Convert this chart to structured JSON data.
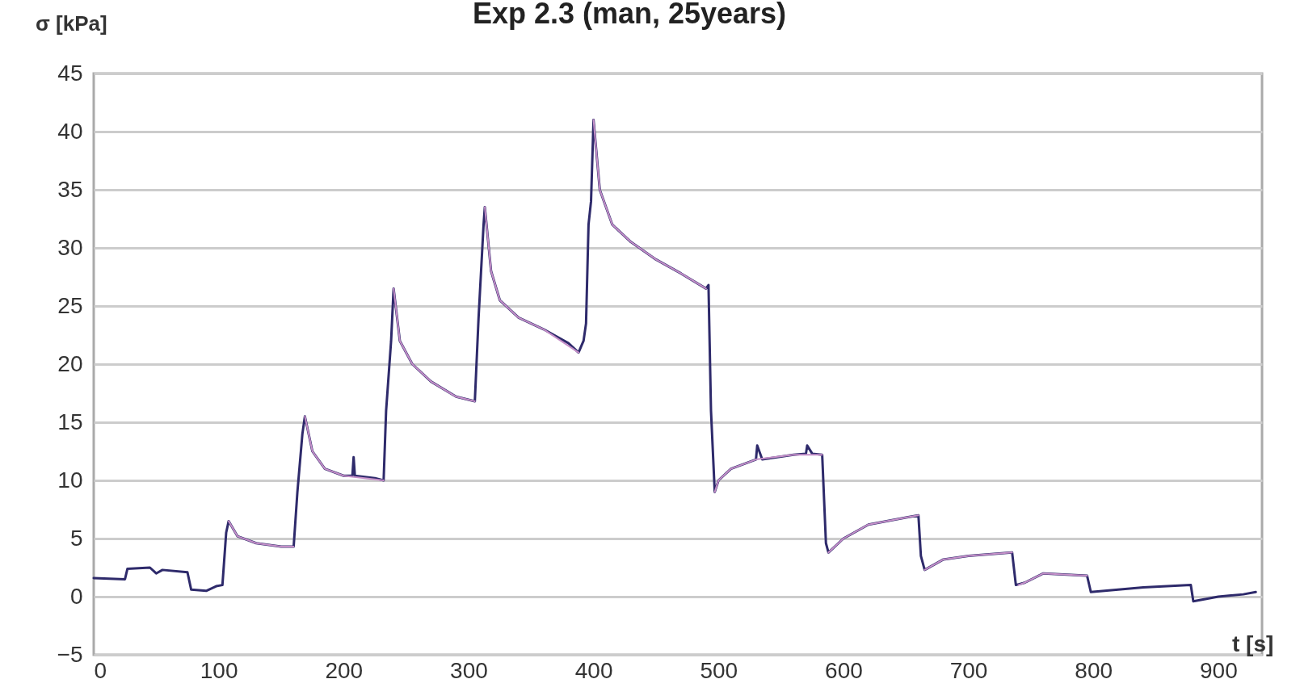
{
  "chart_data": {
    "type": "line",
    "title": "Exp 2.3 (man, 25years)",
    "xlabel": "t [s]",
    "ylabel": "σ [kPa]",
    "xlim": [
      0,
      935
    ],
    "xticks": [
      0,
      100,
      200,
      300,
      400,
      500,
      600,
      700,
      800,
      900
    ],
    "ylim": [
      -5,
      45
    ],
    "yticks": [
      -5,
      0,
      5,
      10,
      15,
      20,
      25,
      30,
      35,
      40,
      45
    ],
    "grid": "y",
    "line_style": "solid",
    "series": [
      {
        "color": "#2e2a6b",
        "x": [
          0,
          25,
          27,
          45,
          50,
          55,
          75,
          78,
          90,
          98,
          103,
          106,
          108,
          115,
          130,
          150,
          160,
          163,
          167,
          169,
          175,
          185,
          200,
          207,
          208,
          209,
          225,
          232,
          234,
          238,
          240,
          245,
          255,
          270,
          290,
          305,
          308,
          312,
          313,
          318,
          325,
          340,
          360,
          380,
          388,
          392,
          394,
          396,
          398,
          400,
          405,
          415,
          430,
          450,
          470,
          490,
          492,
          494,
          497,
          500,
          510,
          530,
          531,
          535,
          560,
          570,
          571,
          575,
          583,
          586,
          588,
          600,
          620,
          650,
          660,
          662,
          665,
          680,
          700,
          735,
          738,
          745,
          760,
          795,
          798,
          840,
          878,
          880,
          900,
          920,
          930
        ],
        "values": [
          1.6,
          1.5,
          2.4,
          2.5,
          2.0,
          2.3,
          2.1,
          0.6,
          0.5,
          0.9,
          1.0,
          5.5,
          6.5,
          5.2,
          4.6,
          4.3,
          4.3,
          9,
          14,
          15.5,
          12.5,
          11,
          10.4,
          10.4,
          12,
          10.4,
          10.2,
          10.0,
          16,
          22,
          26.5,
          22,
          20,
          18.5,
          17.2,
          16.8,
          24,
          32,
          33.5,
          28,
          25.5,
          24,
          23,
          21.8,
          21,
          22,
          23.5,
          32,
          34,
          41,
          35,
          32,
          30.5,
          29,
          27.8,
          26.5,
          26.8,
          16,
          9,
          10,
          11,
          11.8,
          13,
          11.8,
          12.2,
          12.3,
          13,
          12.3,
          12.2,
          4.6,
          3.8,
          5,
          6.2,
          6.8,
          7.0,
          3.5,
          2.3,
          3.2,
          3.5,
          3.8,
          1.0,
          1.2,
          2.0,
          1.8,
          0.4,
          0.8,
          1.0,
          -0.4,
          0,
          0.2,
          0.4
        ]
      },
      {
        "color": "#c58fc8",
        "x": [
          108,
          115,
          130,
          150,
          160,
          161,
          169,
          175,
          185,
          200,
          232,
          233,
          240,
          245,
          255,
          270,
          290,
          305,
          306,
          313,
          318,
          325,
          340,
          360,
          388,
          389,
          400,
          405,
          415,
          430,
          450,
          470,
          490,
          491,
          497,
          500,
          510,
          530,
          560,
          583,
          584,
          588,
          600,
          620,
          650,
          660,
          661,
          665,
          680,
          700,
          735,
          736,
          740,
          745,
          760,
          795
        ],
        "values": [
          6.5,
          5.2,
          4.6,
          4.3,
          4.3,
          null,
          15.5,
          12.5,
          11,
          10.4,
          10.0,
          null,
          26.5,
          22,
          20,
          18.5,
          17.2,
          16.8,
          null,
          33.5,
          28,
          25.5,
          24,
          23,
          21,
          null,
          41,
          35,
          32,
          30.5,
          29,
          27.8,
          26.5,
          null,
          9,
          10,
          11,
          11.8,
          12.2,
          12.2,
          null,
          3.8,
          5,
          6.2,
          6.8,
          7.0,
          null,
          2.3,
          3.2,
          3.5,
          3.8,
          null,
          1.0,
          1.2,
          2.0,
          1.8
        ]
      }
    ]
  }
}
